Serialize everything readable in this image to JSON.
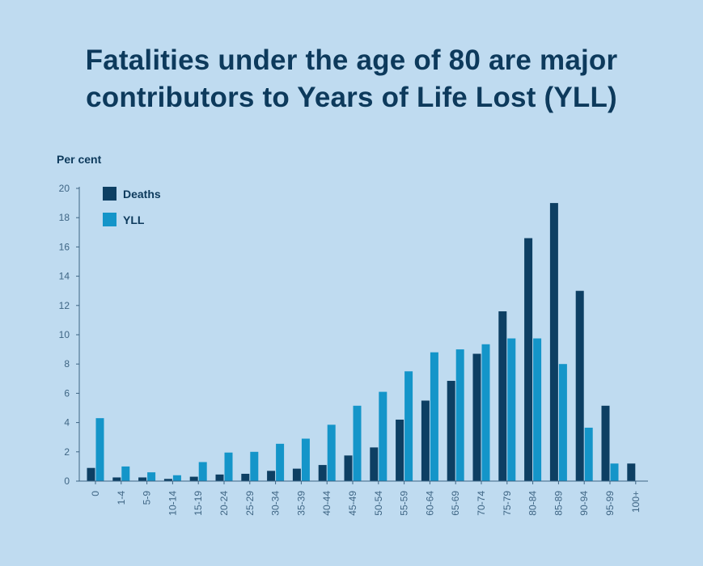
{
  "title_lines": [
    "Fatalities under the age of 80 are major",
    "contributors to Years of Life Lost (YLL)"
  ],
  "chart_data": {
    "type": "bar",
    "title": "Fatalities under the age of 80 are major contributors to Years of Life Lost (YLL)",
    "ylabel": "Per cent",
    "xlabel": "",
    "ylim": [
      0,
      20
    ],
    "yticks": [
      0,
      2,
      4,
      6,
      8,
      10,
      12,
      14,
      16,
      18,
      20
    ],
    "legend_position": "top-left",
    "categories": [
      "0",
      "1-4",
      "5-9",
      "10-14",
      "15-19",
      "20-24",
      "25-29",
      "30-34",
      "35-39",
      "40-44",
      "45-49",
      "50-54",
      "55-59",
      "60-64",
      "65-69",
      "70-74",
      "75-79",
      "80-84",
      "85-89",
      "90-94",
      "95-99",
      "100+"
    ],
    "series": [
      {
        "name": "Deaths",
        "color": "#0d3f63",
        "values": [
          0.9,
          0.25,
          0.25,
          0.15,
          0.3,
          0.45,
          0.5,
          0.7,
          0.85,
          1.1,
          1.75,
          2.3,
          4.2,
          5.5,
          6.85,
          8.7,
          11.6,
          16.6,
          19.0,
          13.0,
          5.15,
          1.2
        ]
      },
      {
        "name": "YLL",
        "color": "#1495c9",
        "values": [
          4.3,
          1.0,
          0.6,
          0.4,
          1.3,
          1.95,
          2.0,
          2.55,
          2.9,
          3.85,
          5.15,
          6.1,
          7.5,
          8.8,
          9.0,
          9.35,
          9.75,
          9.75,
          8.0,
          3.65,
          1.2,
          0
        ]
      }
    ]
  }
}
